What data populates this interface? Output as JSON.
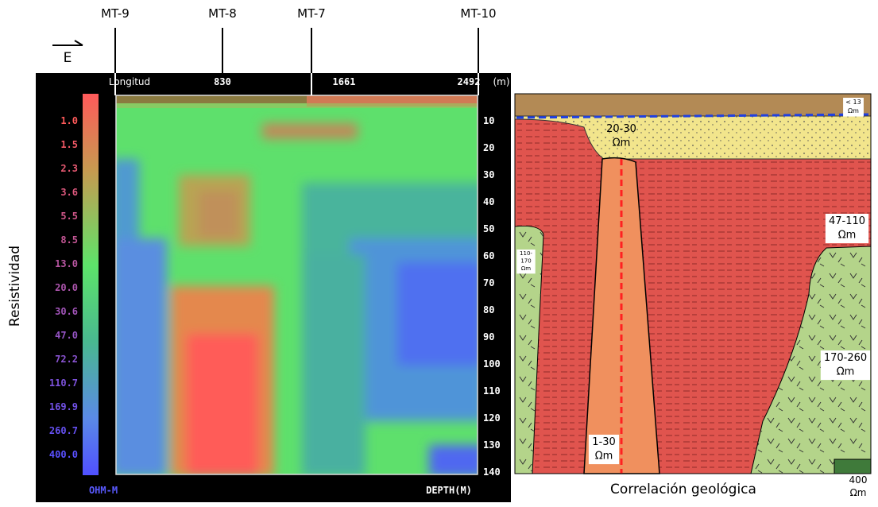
{
  "header": {
    "stations": [
      "MT-9",
      "MT-8",
      "MT-7",
      "MT-10"
    ],
    "direction": "E"
  },
  "resistivity_section": {
    "y_title": "Resistividad",
    "x_axis": {
      "title": "Longitud",
      "ticks": [
        "830",
        "1661",
        "2492"
      ],
      "unit": "(m)"
    },
    "colorbar": {
      "labels": [
        "1.0",
        "1.5",
        "2.3",
        "3.6",
        "5.5",
        "8.5",
        "13.0",
        "20.0",
        "30.6",
        "47.0",
        "72.2",
        "110.7",
        "169.9",
        "260.7",
        "400.0"
      ],
      "unit": "OHM-M"
    },
    "depth_axis": {
      "labels": [
        "10",
        "20",
        "30",
        "40",
        "50",
        "60",
        "70",
        "80",
        "90",
        "100",
        "110",
        "120",
        "130",
        "140"
      ],
      "title": "DEPTH(M)"
    }
  },
  "geology": {
    "units": [
      {
        "lines": [
          "< 13",
          "Ωm"
        ]
      },
      {
        "lines": [
          "20-30",
          "Ωm"
        ]
      },
      {
        "lines": [
          "47-110",
          "Ωm"
        ]
      },
      {
        "lines": [
          "110-",
          "170",
          "Ωm"
        ]
      },
      {
        "lines": [
          "170-260",
          "Ωm"
        ]
      },
      {
        "lines": [
          "1-30",
          "Ωm"
        ]
      },
      {
        "lines": [
          "400",
          "Ωm"
        ]
      }
    ],
    "caption": "Correlación geológica"
  }
}
